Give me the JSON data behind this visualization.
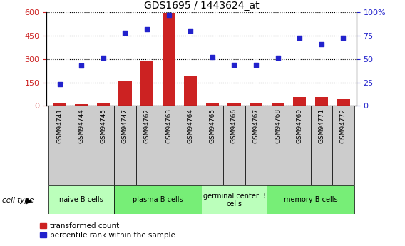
{
  "title": "GDS1695 / 1443624_at",
  "samples": [
    "GSM94741",
    "GSM94744",
    "GSM94745",
    "GSM94747",
    "GSM94762",
    "GSM94763",
    "GSM94764",
    "GSM94765",
    "GSM94766",
    "GSM94767",
    "GSM94768",
    "GSM94769",
    "GSM94771",
    "GSM94772"
  ],
  "transformed_count": [
    15,
    10,
    15,
    155,
    290,
    595,
    195,
    15,
    15,
    15,
    15,
    55,
    55,
    45
  ],
  "percentile_rank": [
    23,
    43,
    51,
    78,
    82,
    97,
    80,
    52,
    44,
    44,
    51,
    73,
    66,
    73
  ],
  "bar_color": "#cc2222",
  "dot_color": "#2222cc",
  "left_ylim": [
    0,
    600
  ],
  "right_ylim": [
    0,
    100
  ],
  "left_yticks": [
    0,
    150,
    300,
    450,
    600
  ],
  "right_yticks": [
    0,
    25,
    50,
    75,
    100
  ],
  "right_yticklabels": [
    "0",
    "25",
    "50",
    "75",
    "100%"
  ],
  "cell_groups": [
    {
      "label": "naive B cells",
      "start": 0,
      "end": 3,
      "color": "#bbffbb"
    },
    {
      "label": "plasma B cells",
      "start": 3,
      "end": 7,
      "color": "#77ee77"
    },
    {
      "label": "germinal center B\ncells",
      "start": 7,
      "end": 10,
      "color": "#bbffbb"
    },
    {
      "label": "memory B cells",
      "start": 10,
      "end": 14,
      "color": "#77ee77"
    }
  ],
  "tick_box_color": "#cccccc",
  "background_color": "#ffffff",
  "grid_color": "#000000",
  "tick_label_color_left": "#cc2222",
  "tick_label_color_right": "#2222cc",
  "legend_red_label": "transformed count",
  "legend_blue_label": "percentile rank within the sample",
  "cell_type_label": "cell type"
}
